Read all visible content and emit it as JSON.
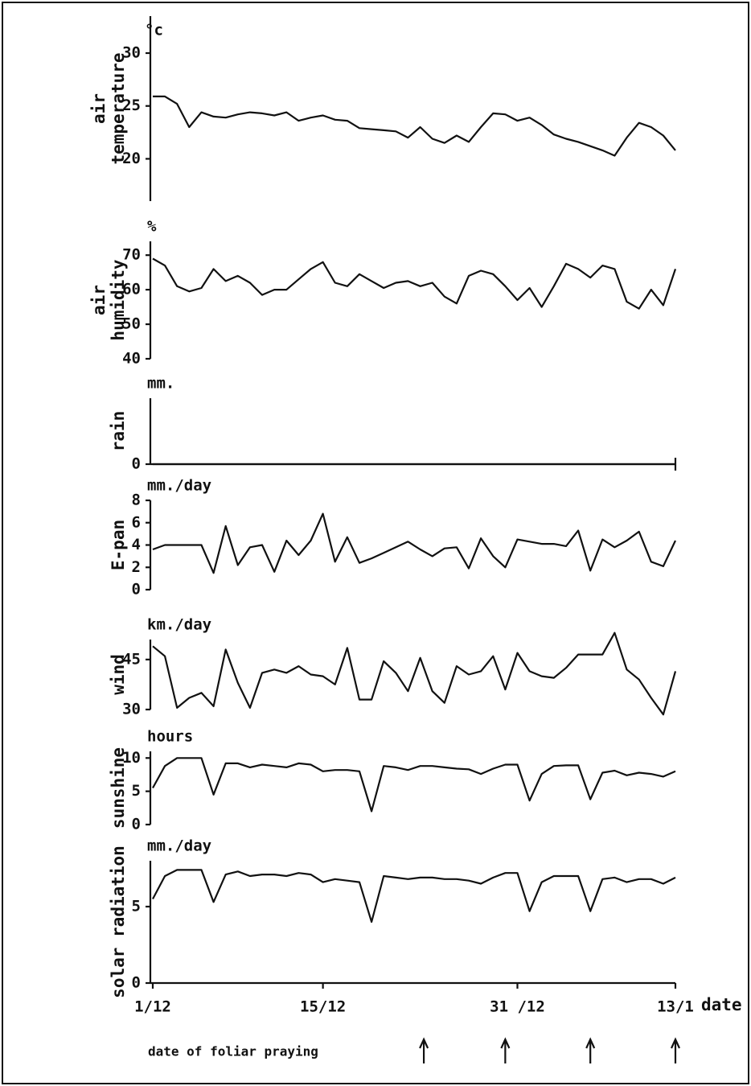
{
  "chart_data": [
    {
      "type": "line",
      "ylabel": [
        "air",
        "temperature"
      ],
      "unit": "°c",
      "ylim": [
        16,
        33.5
      ],
      "yticks": [
        20,
        25,
        30
      ],
      "values": [
        25.9,
        25.9,
        25.2,
        23.0,
        24.4,
        24.0,
        23.9,
        24.2,
        24.4,
        24.3,
        24.1,
        24.4,
        23.6,
        23.9,
        24.1,
        23.7,
        23.6,
        22.9,
        22.8,
        22.7,
        22.6,
        22.0,
        23.0,
        21.9,
        21.5,
        22.2,
        21.6,
        23.0,
        24.3,
        24.2,
        23.6,
        23.9,
        23.2,
        22.3,
        21.9,
        21.6,
        21.2,
        20.8,
        20.3,
        22.0,
        23.4,
        23.0,
        22.2,
        20.8
      ]
    },
    {
      "type": "line",
      "ylabel": [
        "air",
        "humidity"
      ],
      "unit": "%",
      "ylim": [
        40,
        74
      ],
      "yticks": [
        40,
        50,
        60,
        70
      ],
      "values": [
        69,
        67,
        61,
        59.5,
        60.5,
        66,
        62.5,
        64,
        62,
        58.5,
        60,
        60,
        63,
        66,
        68,
        62,
        61,
        64.5,
        62.5,
        60.5,
        62,
        62.5,
        61,
        62,
        58,
        56,
        64,
        65.5,
        64.5,
        61,
        57,
        60.5,
        55,
        61,
        67.5,
        66,
        63.5,
        67,
        66,
        56.5,
        54.5,
        60,
        55.5,
        66
      ]
    },
    {
      "type": "line",
      "ylabel": [
        "rain"
      ],
      "unit": "mm.",
      "ylim": [
        0,
        1
      ],
      "yticks": [
        0
      ],
      "values": [
        0,
        0,
        0,
        0,
        0,
        0,
        0,
        0,
        0,
        0,
        0,
        0,
        0,
        0,
        0,
        0,
        0,
        0,
        0,
        0,
        0,
        0,
        0,
        0,
        0,
        0,
        0,
        0,
        0,
        0,
        0,
        0,
        0,
        0,
        0,
        0,
        0,
        0,
        0,
        0,
        0,
        0,
        0,
        0
      ]
    },
    {
      "type": "line",
      "ylabel": [
        "E-pan"
      ],
      "unit": "mm./day",
      "ylim": [
        0,
        8
      ],
      "yticks": [
        0,
        2,
        4,
        6,
        8
      ],
      "values": [
        3.6,
        4.0,
        4.0,
        4.0,
        4.0,
        1.5,
        5.7,
        2.2,
        3.8,
        4.0,
        1.6,
        4.4,
        3.1,
        4.4,
        6.8,
        2.5,
        4.7,
        2.4,
        2.8,
        3.3,
        3.8,
        4.3,
        3.6,
        3.0,
        3.7,
        3.8,
        1.9,
        4.6,
        3.0,
        2.0,
        4.5,
        4.3,
        4.1,
        4.1,
        3.9,
        5.3,
        1.7,
        4.5,
        3.8,
        4.4,
        5.2,
        2.5,
        2.1,
        4.4
      ]
    },
    {
      "type": "line",
      "ylabel": [
        "wind"
      ],
      "unit": "km./day",
      "ylim": [
        30,
        51
      ],
      "yticks": [
        30,
        45
      ],
      "values": [
        49,
        46,
        30.5,
        33.5,
        35,
        31,
        48,
        38,
        30.5,
        41,
        42,
        41,
        43,
        40.5,
        40,
        37.5,
        48.5,
        33,
        33,
        44.5,
        41,
        35.5,
        45.5,
        35.5,
        32,
        43,
        40.5,
        41.5,
        46,
        36,
        47,
        41.5,
        40,
        39.5,
        42.5,
        46.5,
        46.5,
        46.5,
        53,
        42,
        39,
        33.5,
        28.5,
        41.5
      ]
    },
    {
      "type": "line",
      "ylabel": [
        "sunshine"
      ],
      "unit": "hours",
      "ylim": [
        0,
        11
      ],
      "yticks": [
        0,
        5,
        10
      ],
      "values": [
        5.5,
        8.8,
        10,
        10,
        10,
        4.5,
        9.2,
        9.2,
        8.6,
        9.0,
        8.8,
        8.6,
        9.2,
        9.0,
        8.0,
        8.2,
        8.2,
        8.0,
        2.0,
        8.8,
        8.6,
        8.2,
        8.8,
        8.8,
        8.6,
        8.4,
        8.3,
        7.6,
        8.4,
        9.0,
        9.0,
        3.6,
        7.6,
        8.8,
        8.9,
        8.9,
        3.8,
        7.8,
        8.1,
        7.4,
        7.8,
        7.6,
        7.2,
        8.0
      ]
    },
    {
      "type": "line",
      "ylabel": [
        "solar radiation"
      ],
      "unit": "mm./day",
      "ylim": [
        0,
        8
      ],
      "yticks": [
        0,
        5
      ],
      "values": [
        5.5,
        7.0,
        7.4,
        7.4,
        7.4,
        5.3,
        7.1,
        7.3,
        7.0,
        7.1,
        7.1,
        7.0,
        7.2,
        7.1,
        6.6,
        6.8,
        6.7,
        6.6,
        4.0,
        7.0,
        6.9,
        6.8,
        6.9,
        6.9,
        6.8,
        6.8,
        6.7,
        6.5,
        6.9,
        7.2,
        7.2,
        4.7,
        6.6,
        7.0,
        7.0,
        7.0,
        4.7,
        6.8,
        6.9,
        6.6,
        6.8,
        6.8,
        6.5,
        6.9
      ],
      "xlabel": "date",
      "categories": [
        "1/12",
        null,
        null,
        null,
        null,
        null,
        null,
        null,
        null,
        null,
        null,
        null,
        null,
        null,
        "15/12",
        null,
        null,
        null,
        null,
        null,
        null,
        null,
        null,
        null,
        null,
        null,
        null,
        null,
        null,
        null,
        "31 /12",
        null,
        null,
        null,
        null,
        null,
        null,
        null,
        null,
        null,
        null,
        null,
        null,
        "13/1"
      ],
      "annotation": {
        "text": "date of foliar praying",
        "x": [
          22.3,
          29,
          36,
          43
        ]
      }
    }
  ]
}
